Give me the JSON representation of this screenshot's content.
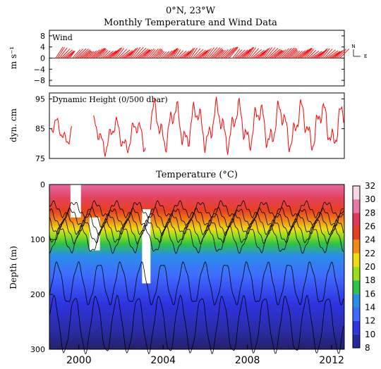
{
  "header": {
    "location": "0°N, 23°W",
    "title": "Monthly Temperature and Wind Data"
  },
  "chart_data": [
    {
      "type": "line",
      "panel": "wind",
      "title": "Wind",
      "ylabel": "m s⁻¹",
      "ylim": [
        -10,
        10
      ],
      "yticks": [
        8,
        4,
        0,
        -4,
        -8
      ],
      "ytick_labels": [
        "8",
        "4",
        "0",
        "−4",
        "−8"
      ],
      "xlim": [
        1998.6,
        2012.6
      ],
      "legend": {
        "north": "N",
        "east": "E",
        "placement": "right"
      },
      "segments": [
        {
          "x": [
            1998.9,
            1999.6
          ],
          "u": [
            -4,
            -3
          ],
          "v": [
            5,
            4
          ]
        },
        {
          "x": [
            1999.7,
            2003.2
          ],
          "u": [
            -4,
            -4
          ],
          "v": [
            4,
            5
          ]
        },
        {
          "x": [
            2003.3,
            2007.2
          ],
          "u": [
            -3,
            -4
          ],
          "v": [
            4,
            5
          ]
        },
        {
          "x": [
            2007.3,
            2012.4
          ],
          "u": [
            -4,
            -4
          ],
          "v": [
            5,
            4
          ]
        }
      ],
      "color": "#ff0000"
    },
    {
      "type": "line",
      "panel": "dynamic_height",
      "title": "Dynamic Height (0/500 dbar)",
      "ylabel": "dyn. cm",
      "ylim": [
        75,
        97
      ],
      "yticks": [
        95,
        85,
        75
      ],
      "xlim": [
        1998.6,
        2012.6
      ],
      "segments": [
        {
          "x": [
            1998.7,
            1999.7
          ],
          "y_range": [
            79,
            89
          ]
        },
        {
          "x": [
            2000.7,
            2003.2
          ],
          "y_range": [
            76,
            89
          ]
        },
        {
          "x": [
            2003.4,
            2012.6
          ],
          "y_range": [
            77,
            95
          ]
        }
      ],
      "color": "#ff0000"
    },
    {
      "type": "heatmap",
      "panel": "temperature",
      "title": "Temperature (°C)",
      "ylabel": "Depth (m)",
      "ylim": [
        300,
        0
      ],
      "yticks": [
        0,
        100,
        200,
        300
      ],
      "xlim": [
        1998.6,
        2012.6
      ],
      "xticks": [
        2000,
        2004,
        2008,
        2012
      ],
      "colorbar": {
        "ticks": [
          32,
          30,
          28,
          26,
          24,
          22,
          20,
          18,
          16,
          14,
          12,
          10,
          8
        ],
        "colors": [
          "#f7d6e6",
          "#e57aa8",
          "#e03a5a",
          "#e8401e",
          "#ef8a16",
          "#eedc10",
          "#9ade1a",
          "#2fc246",
          "#2a8ee8",
          "#3f6cff",
          "#2e34e0",
          "#28289e",
          "#1b1b5e"
        ]
      },
      "gaps": [
        {
          "x": [
            1999.6,
            2000.1
          ],
          "depth": [
            0,
            60
          ]
        },
        {
          "x": [
            2000.5,
            2001.0
          ],
          "depth": [
            60,
            120
          ]
        },
        {
          "x": [
            2003.0,
            2003.4
          ],
          "depth": [
            45,
            180
          ]
        }
      ],
      "contour_depths": [
        {
          "temperature": 26,
          "mean_depth": 45
        },
        {
          "temperature": 24,
          "mean_depth": 60
        },
        {
          "temperature": 22,
          "mean_depth": 72
        },
        {
          "temperature": 20,
          "mean_depth": 85
        },
        {
          "temperature": 18,
          "mean_depth": 100
        },
        {
          "temperature": 14,
          "mean_depth": 180
        },
        {
          "temperature": 12,
          "mean_depth": 255
        }
      ]
    }
  ]
}
